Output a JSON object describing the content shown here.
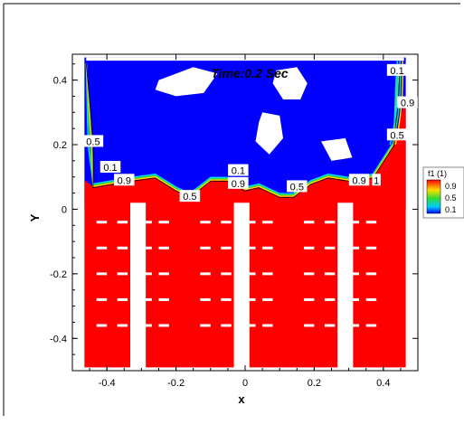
{
  "chart_data": {
    "type": "contour",
    "title": "Time:0.2 Sec",
    "xlabel": "x",
    "ylabel": "Y",
    "xlim": [
      -0.5,
      0.5
    ],
    "ylim": [
      -0.5,
      0.48
    ],
    "xticks": [
      -0.4,
      -0.2,
      0,
      0.2,
      0.4
    ],
    "xtick_labels": [
      "-0.4",
      "-0.2",
      "0",
      "0.2",
      "0.4"
    ],
    "yticks": [
      -0.4,
      -0.2,
      0,
      0.2,
      0.4
    ],
    "ytick_labels": [
      "-0.4",
      "-0.2",
      "0",
      "0.2",
      "0.4"
    ],
    "legend": {
      "title": "f1 (1)",
      "placement": "right",
      "levels": [
        {
          "label": "0.9",
          "color": "#ff2200"
        },
        {
          "label": "0.5",
          "color": "#33dd33"
        },
        {
          "label": "0.1",
          "color": "#0044ff"
        }
      ]
    },
    "colors": {
      "fluid_high": "#ff0000",
      "fluid_low": "#0000ff",
      "obstacle": "#ffffff"
    },
    "interface_profile": [
      {
        "x": -0.44,
        "y": 0.07
      },
      {
        "x": -0.33,
        "y": 0.09
      },
      {
        "x": -0.26,
        "y": 0.1
      },
      {
        "x": -0.2,
        "y": 0.06
      },
      {
        "x": -0.16,
        "y": 0.04
      },
      {
        "x": -0.1,
        "y": 0.09
      },
      {
        "x": -0.05,
        "y": 0.09
      },
      {
        "x": 0.0,
        "y": 0.06
      },
      {
        "x": 0.04,
        "y": 0.07
      },
      {
        "x": 0.1,
        "y": 0.04
      },
      {
        "x": 0.14,
        "y": 0.04
      },
      {
        "x": 0.19,
        "y": 0.08
      },
      {
        "x": 0.24,
        "y": 0.1
      },
      {
        "x": 0.3,
        "y": 0.09
      },
      {
        "x": 0.37,
        "y": 0.1
      },
      {
        "x": 0.43,
        "y": 0.2
      }
    ],
    "contour_labels": [
      {
        "text": "0.1",
        "x": 0.44,
        "y": 0.43
      },
      {
        "text": "0.9",
        "x": 0.47,
        "y": 0.33
      },
      {
        "text": "0.5",
        "x": 0.44,
        "y": 0.23
      },
      {
        "text": "0.5",
        "x": -0.44,
        "y": 0.21
      },
      {
        "text": "0.1",
        "x": -0.39,
        "y": 0.13
      },
      {
        "text": "0.9",
        "x": -0.35,
        "y": 0.09
      },
      {
        "text": "0.5",
        "x": -0.16,
        "y": 0.04
      },
      {
        "text": "0.1",
        "x": -0.02,
        "y": 0.12
      },
      {
        "text": "0.9",
        "x": -0.02,
        "y": 0.08
      },
      {
        "text": "0.5",
        "x": 0.15,
        "y": 0.07
      },
      {
        "text": "0.9",
        "x": 0.33,
        "y": 0.09
      },
      {
        "text": "1",
        "x": 0.38,
        "y": 0.09
      }
    ],
    "obstacles": {
      "columns": [
        {
          "x_center": -0.31,
          "width": 0.045,
          "y_bottom": -0.5,
          "y_top": 0.02
        },
        {
          "x_center": -0.01,
          "width": 0.045,
          "y_bottom": -0.5,
          "y_top": 0.02
        },
        {
          "x_center": 0.29,
          "width": 0.045,
          "y_bottom": -0.5,
          "y_top": 0.02
        }
      ],
      "dash_rows_y": [
        -0.04,
        -0.12,
        -0.2,
        -0.28,
        -0.36
      ],
      "dash_segments_x": [
        [
          -0.43,
          -0.4
        ],
        [
          -0.37,
          -0.34
        ],
        [
          -0.29,
          -0.27
        ],
        [
          -0.25,
          -0.22
        ],
        [
          -0.13,
          -0.1
        ],
        [
          -0.07,
          -0.04
        ],
        [
          0.01,
          0.03
        ],
        [
          0.05,
          0.08
        ],
        [
          0.17,
          0.2
        ],
        [
          0.23,
          0.26
        ],
        [
          0.31,
          0.33
        ],
        [
          0.35,
          0.38
        ]
      ]
    },
    "bubbles": [
      {
        "points": [
          [
            -0.25,
            0.4
          ],
          [
            -0.15,
            0.44
          ],
          [
            -0.08,
            0.42
          ],
          [
            -0.12,
            0.36
          ],
          [
            -0.2,
            0.35
          ],
          [
            -0.26,
            0.37
          ]
        ]
      },
      {
        "points": [
          [
            0.09,
            0.43
          ],
          [
            0.15,
            0.44
          ],
          [
            0.18,
            0.39
          ],
          [
            0.16,
            0.34
          ],
          [
            0.11,
            0.34
          ],
          [
            0.08,
            0.39
          ]
        ]
      },
      {
        "points": [
          [
            0.05,
            0.3
          ],
          [
            0.1,
            0.29
          ],
          [
            0.11,
            0.22
          ],
          [
            0.07,
            0.17
          ],
          [
            0.03,
            0.21
          ],
          [
            0.04,
            0.27
          ]
        ]
      },
      {
        "points": [
          [
            0.22,
            0.21
          ],
          [
            0.29,
            0.22
          ],
          [
            0.31,
            0.16
          ],
          [
            0.25,
            0.15
          ]
        ]
      },
      {
        "points": [
          [
            -0.46,
            0.47
          ],
          [
            0.46,
            0.47
          ],
          [
            0.46,
            0.46
          ],
          [
            -0.46,
            0.46
          ]
        ]
      }
    ]
  }
}
